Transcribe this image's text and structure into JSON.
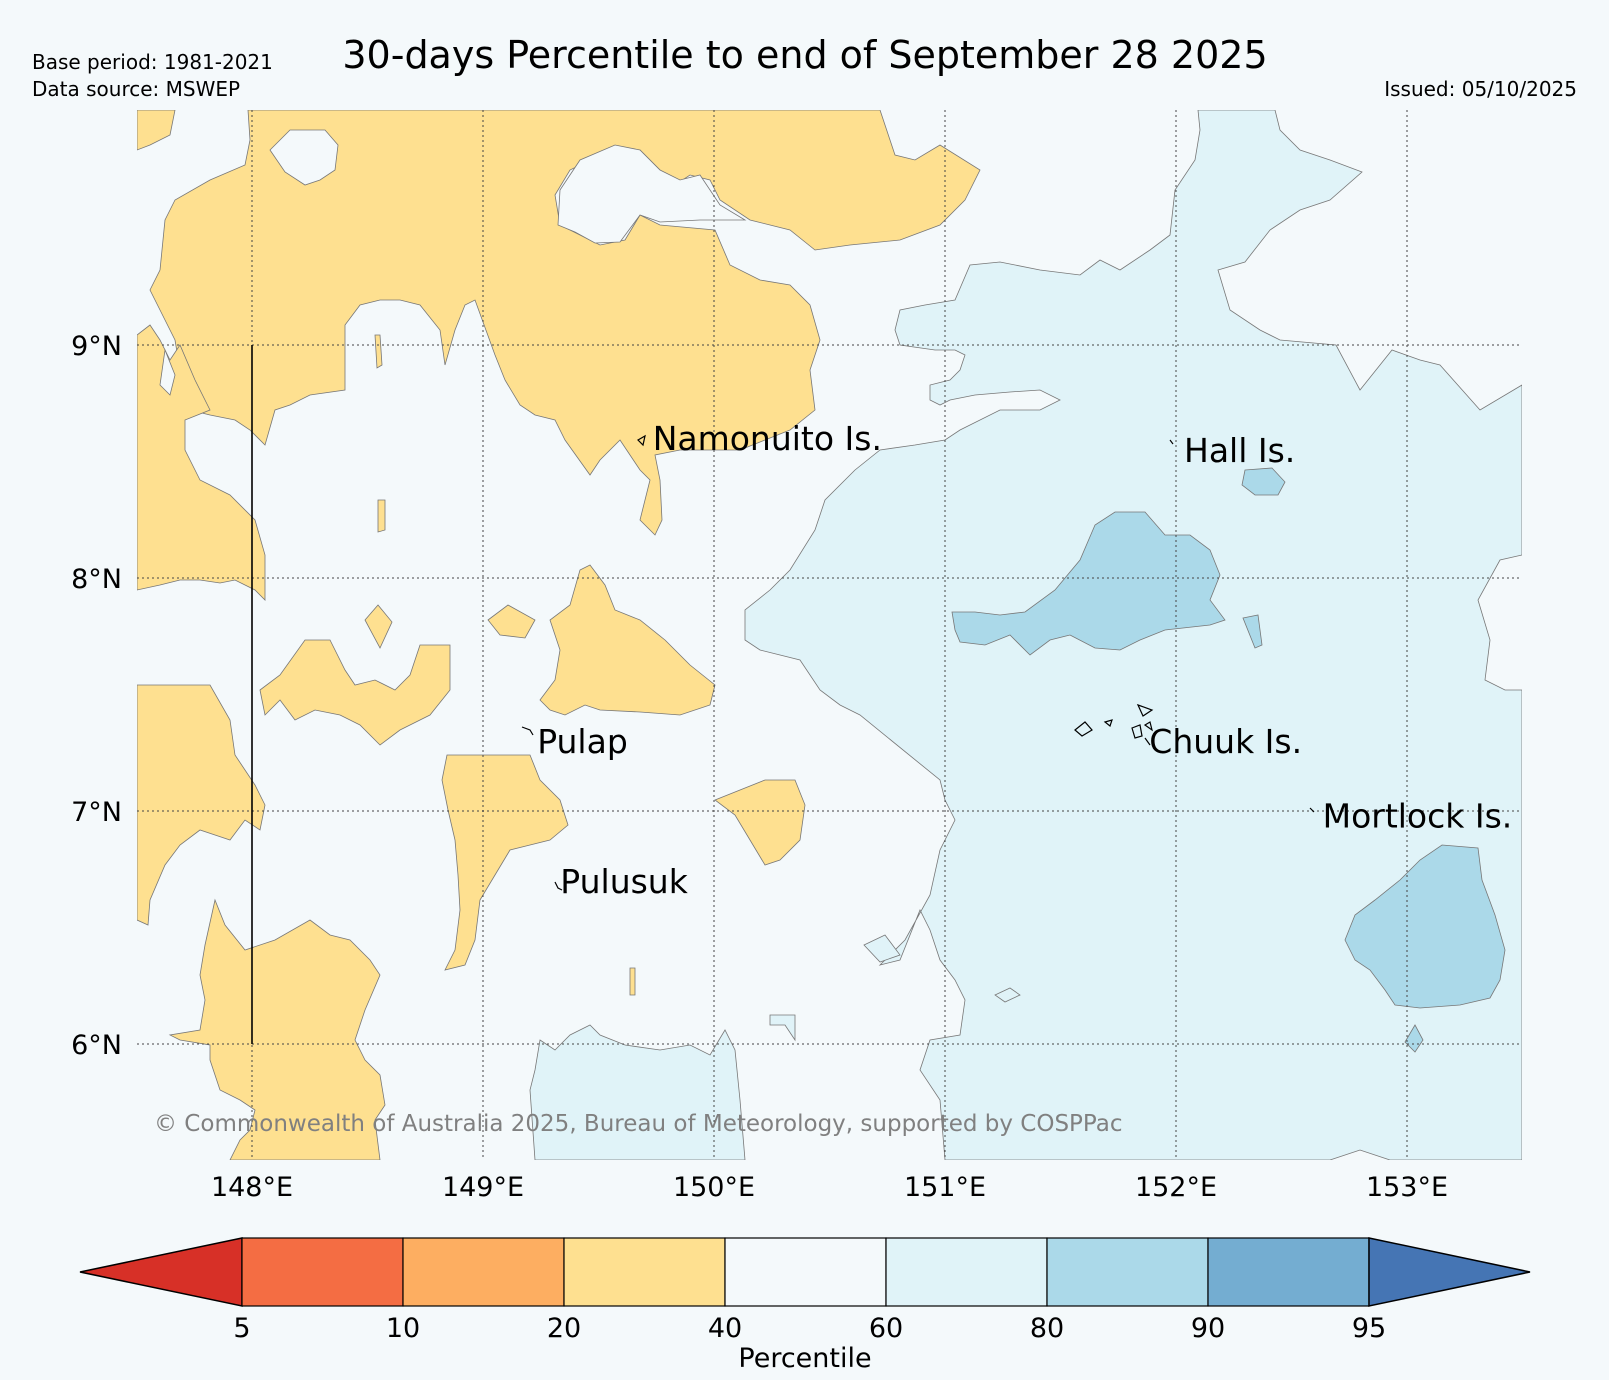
{
  "title": "30-days Percentile to end of September 28 2025",
  "base_period": "Base period: 1981-2021",
  "data_source": "Data source: MSWEP",
  "issued": "Issued: 05/10/2025",
  "copyright": "© Commonwealth of Australia 2025, Bureau of Meteorology, supported by COSPPac",
  "map": {
    "lon_ticks": [
      "148°E",
      "149°E",
      "150°E",
      "151°E",
      "152°E",
      "153°E"
    ],
    "lat_ticks": [
      "9°N",
      "8°N",
      "7°N",
      "6°N"
    ],
    "places": [
      {
        "name": "Namonuito Is.",
        "lon": 149.7,
        "lat": 8.6
      },
      {
        "name": "Hall Is.",
        "lon": 152.0,
        "lat": 8.55
      },
      {
        "name": "Pulap",
        "lon": 149.2,
        "lat": 7.3
      },
      {
        "name": "Chuuk Is.",
        "lon": 151.85,
        "lat": 7.3
      },
      {
        "name": "Mortlock Is.",
        "lon": 152.6,
        "lat": 6.98
      },
      {
        "name": "Pulusuk",
        "lon": 149.3,
        "lat": 6.7
      }
    ]
  },
  "colorbar": {
    "label": "Percentile",
    "ticks": [
      "5",
      "10",
      "20",
      "40",
      "60",
      "80",
      "90",
      "95"
    ],
    "colors": {
      "below_5": "#d73027",
      "5-10": "#f46d43",
      "10-20": "#fdae61",
      "20-40": "#fee090",
      "40-60": "#f4f9fb",
      "60-80": "#e0f3f8",
      "80-90": "#abd9e9",
      "90-95": "#74add1",
      "above_95": "#4575b4"
    }
  }
}
